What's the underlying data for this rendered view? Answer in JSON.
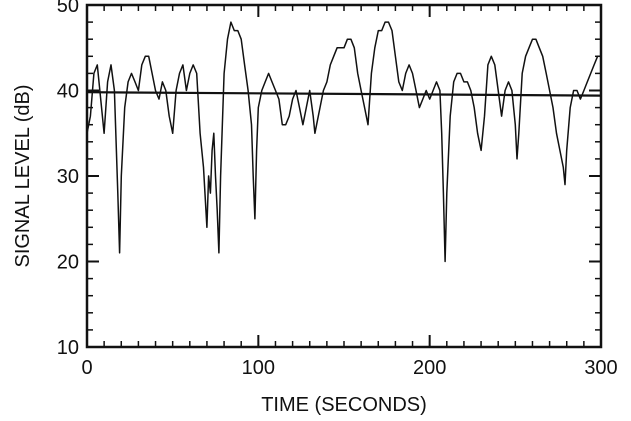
{
  "chart_data": {
    "type": "line",
    "title": "",
    "xlabel": "TIME (SECONDS)",
    "ylabel": "SIGNAL LEVEL (dB)",
    "xlim": [
      0,
      300
    ],
    "ylim": [
      10,
      50
    ],
    "x_ticks": [
      0,
      100,
      200,
      300
    ],
    "y_ticks": [
      10,
      20,
      30,
      40,
      50
    ],
    "x_tick_labels": [
      "0",
      "100",
      "200",
      "300"
    ],
    "y_tick_labels": [
      "10",
      "20",
      "30",
      "40",
      "50"
    ],
    "x_minor_step": 10,
    "y_minor_step": 2,
    "grid": false,
    "legend": "none",
    "colors": {
      "line": "#111111",
      "axes": "#111111",
      "background": "#ffffff"
    },
    "series": [
      {
        "style": "signal",
        "x": [
          0,
          2,
          4,
          6,
          8,
          10,
          12,
          14,
          16,
          18,
          19,
          20,
          22,
          24,
          26,
          28,
          30,
          32,
          34,
          36,
          38,
          40,
          42,
          44,
          46,
          48,
          50,
          52,
          54,
          56,
          58,
          60,
          62,
          64,
          66,
          68,
          70,
          71,
          72,
          73,
          74,
          75,
          76,
          77,
          78,
          80,
          82,
          84,
          86,
          88,
          90,
          92,
          94,
          96,
          97,
          98,
          99,
          100,
          102,
          104,
          106,
          108,
          110,
          112,
          114,
          116,
          118,
          120,
          122,
          124,
          126,
          128,
          130,
          132,
          133,
          134,
          136,
          138,
          140,
          142,
          144,
          146,
          148,
          150,
          152,
          154,
          156,
          158,
          160,
          162,
          164,
          166,
          168,
          170,
          172,
          174,
          176,
          178,
          180,
          182,
          184,
          186,
          188,
          190,
          192,
          194,
          196,
          198,
          200,
          202,
          204,
          206,
          207,
          208,
          209,
          210,
          212,
          214,
          216,
          218,
          220,
          222,
          224,
          226,
          228,
          230,
          232,
          234,
          236,
          238,
          240,
          242,
          244,
          246,
          248,
          250,
          251,
          252,
          254,
          256,
          258,
          260,
          262,
          264,
          266,
          268,
          270,
          272,
          274,
          276,
          278,
          279,
          280,
          282,
          284,
          286,
          288,
          290,
          292,
          294,
          296,
          298,
          300
        ],
        "y": [
          35,
          37,
          42,
          43,
          39,
          35,
          41,
          43,
          40,
          28,
          21,
          30,
          38,
          41,
          42,
          41,
          40,
          43,
          44,
          44,
          42,
          40,
          39,
          41,
          40,
          37,
          35,
          40,
          42,
          43,
          40,
          42,
          43,
          42,
          35,
          31,
          24,
          30,
          28,
          33,
          35,
          30,
          26,
          21,
          30,
          42,
          46,
          48,
          47,
          47,
          46,
          43,
          40,
          36,
          30,
          25,
          33,
          38,
          40,
          41,
          42,
          41,
          40,
          39,
          36,
          36,
          37,
          39,
          40,
          38,
          36,
          38,
          40,
          37,
          35,
          36,
          38,
          40,
          41,
          43,
          44,
          45,
          45,
          45,
          46,
          46,
          45,
          42,
          40,
          38,
          36,
          42,
          45,
          47,
          47,
          48,
          48,
          47,
          44,
          41,
          40,
          42,
          43,
          42,
          40,
          38,
          39,
          40,
          39,
          40,
          41,
          40,
          35,
          28,
          20,
          28,
          37,
          41,
          42,
          42,
          41,
          41,
          40,
          38,
          35,
          33,
          37,
          43,
          44,
          43,
          40,
          37,
          40,
          41,
          40,
          36,
          32,
          35,
          42,
          44,
          45,
          46,
          46,
          45,
          44,
          42,
          40,
          38,
          35,
          33,
          31,
          29,
          33,
          38,
          40,
          40,
          39,
          40,
          41,
          42,
          43,
          44,
          44
        ]
      },
      {
        "style": "reference",
        "x": [
          0,
          300
        ],
        "y": [
          39.8,
          39.4
        ]
      }
    ]
  }
}
